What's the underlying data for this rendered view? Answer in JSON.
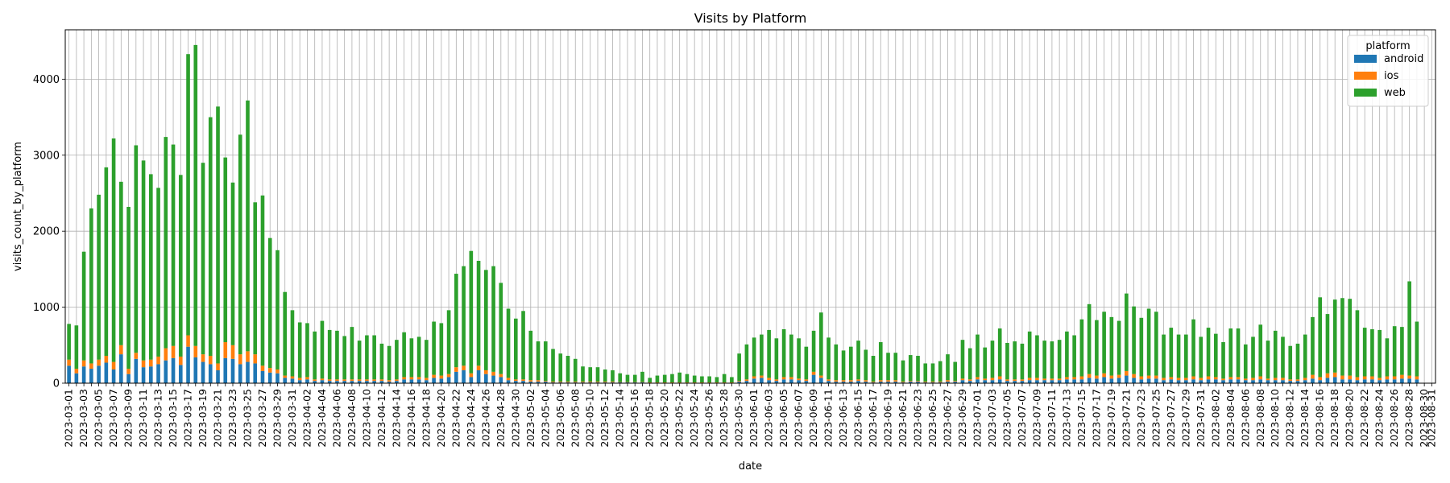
{
  "chart_data": {
    "type": "bar",
    "stacked": true,
    "title": "Visits by Platform",
    "xlabel": "date",
    "ylabel": "visits_count_by_platform",
    "ylim": [
      0,
      4650
    ],
    "yticks": [
      0,
      1000,
      2000,
      3000,
      4000
    ],
    "grid": true,
    "legend": {
      "title": "platform",
      "placement": "top-right"
    },
    "start_date": "2023-03-01",
    "days": 184,
    "x_label_every": 2,
    "colors": {
      "android": "#1f77b4",
      "ios": "#ff7f0e",
      "web": "#2ca02c"
    },
    "series": [
      {
        "name": "android"
      },
      {
        "name": "ios"
      },
      {
        "name": "web"
      }
    ],
    "totals": [
      780,
      760,
      1730,
      2300,
      2480,
      2840,
      3220,
      2650,
      2320,
      3130,
      2930,
      2750,
      2570,
      3240,
      3140,
      2740,
      4330,
      4450,
      2900,
      3500,
      3640,
      2970,
      2640,
      3270,
      3720,
      2380,
      2470,
      1910,
      1750,
      1200,
      960,
      800,
      790,
      680,
      820,
      700,
      690,
      620,
      740,
      560,
      630,
      630,
      520,
      490,
      570,
      670,
      590,
      610,
      570,
      810,
      790,
      960,
      1440,
      1540,
      1740,
      1610,
      1490,
      1540,
      1320,
      980,
      850,
      950,
      690,
      550,
      550,
      450,
      390,
      360,
      320,
      220,
      210,
      210,
      180,
      170,
      130,
      110,
      110,
      150,
      70,
      100,
      110,
      120,
      140,
      120,
      100,
      90,
      90,
      80,
      120,
      80,
      390,
      510,
      600,
      640,
      700,
      590,
      710,
      640,
      590,
      480,
      690,
      930,
      600,
      510,
      430,
      480,
      560,
      440,
      360,
      540,
      400,
      400,
      300,
      370,
      360,
      260,
      260,
      290,
      380,
      280,
      570,
      460,
      640,
      470,
      560,
      720,
      530,
      550,
      520,
      680,
      630,
      560,
      550,
      570,
      680,
      630,
      840,
      1040,
      830,
      940,
      870,
      820,
      1180,
      1010,
      860,
      980,
      940,
      640,
      730,
      640,
      640,
      840,
      610,
      730,
      650,
      540,
      720,
      720,
      510,
      610,
      770,
      560,
      690,
      610,
      490,
      520,
      640,
      870,
      1130,
      910,
      1100,
      1120,
      1110,
      960,
      730,
      710,
      700,
      590,
      750,
      740,
      1340,
      810,
      830
    ],
    "android": [
      230,
      130,
      220,
      190,
      230,
      270,
      180,
      380,
      120,
      320,
      210,
      220,
      250,
      300,
      330,
      240,
      480,
      340,
      280,
      250,
      170,
      330,
      320,
      250,
      280,
      260,
      160,
      140,
      130,
      70,
      60,
      40,
      50,
      30,
      40,
      30,
      30,
      30,
      30,
      30,
      30,
      30,
      30,
      20,
      30,
      50,
      50,
      50,
      40,
      70,
      60,
      80,
      150,
      170,
      80,
      170,
      120,
      100,
      80,
      40,
      30,
      30,
      20,
      20,
      20,
      10,
      10,
      10,
      10,
      10,
      10,
      10,
      10,
      10,
      10,
      10,
      10,
      10,
      5,
      5,
      5,
      5,
      5,
      5,
      5,
      5,
      5,
      5,
      5,
      5,
      20,
      30,
      60,
      70,
      40,
      30,
      50,
      50,
      40,
      30,
      110,
      70,
      30,
      20,
      20,
      20,
      30,
      20,
      10,
      20,
      20,
      20,
      10,
      20,
      20,
      10,
      10,
      10,
      20,
      20,
      40,
      30,
      50,
      40,
      40,
      50,
      30,
      30,
      30,
      40,
      40,
      40,
      40,
      40,
      50,
      50,
      50,
      70,
      60,
      80,
      60,
      70,
      100,
      70,
      50,
      60,
      60,
      40,
      50,
      40,
      40,
      50,
      40,
      50,
      50,
      40,
      50,
      50,
      40,
      40,
      50,
      40,
      40,
      40,
      30,
      30,
      40,
      60,
      40,
      70,
      80,
      50,
      50,
      40,
      50,
      50,
      40,
      50,
      50,
      60,
      60,
      50
    ],
    "ios": [
      80,
      60,
      80,
      70,
      80,
      90,
      100,
      120,
      70,
      80,
      90,
      90,
      100,
      160,
      160,
      110,
      150,
      150,
      100,
      110,
      90,
      210,
      180,
      130,
      140,
      120,
      70,
      60,
      50,
      30,
      30,
      30,
      30,
      20,
      20,
      20,
      20,
      20,
      20,
      20,
      20,
      20,
      20,
      20,
      20,
      30,
      30,
      30,
      30,
      40,
      40,
      40,
      60,
      60,
      50,
      60,
      50,
      50,
      40,
      30,
      20,
      20,
      20,
      20,
      10,
      10,
      10,
      10,
      10,
      10,
      10,
      10,
      10,
      10,
      5,
      5,
      5,
      5,
      5,
      5,
      5,
      5,
      5,
      5,
      5,
      5,
      5,
      5,
      5,
      5,
      10,
      20,
      30,
      30,
      30,
      20,
      30,
      30,
      20,
      20,
      40,
      30,
      20,
      20,
      20,
      20,
      20,
      20,
      10,
      20,
      20,
      20,
      10,
      10,
      10,
      10,
      10,
      10,
      20,
      10,
      20,
      20,
      30,
      20,
      30,
      40,
      20,
      20,
      20,
      30,
      30,
      20,
      20,
      20,
      30,
      30,
      40,
      50,
      40,
      50,
      40,
      40,
      60,
      50,
      40,
      40,
      40,
      30,
      30,
      30,
      30,
      40,
      30,
      40,
      30,
      20,
      30,
      30,
      20,
      30,
      40,
      20,
      30,
      30,
      20,
      20,
      30,
      50,
      40,
      60,
      60,
      50,
      50,
      40,
      40,
      40,
      30,
      40,
      40,
      50,
      40,
      40
    ]
  }
}
